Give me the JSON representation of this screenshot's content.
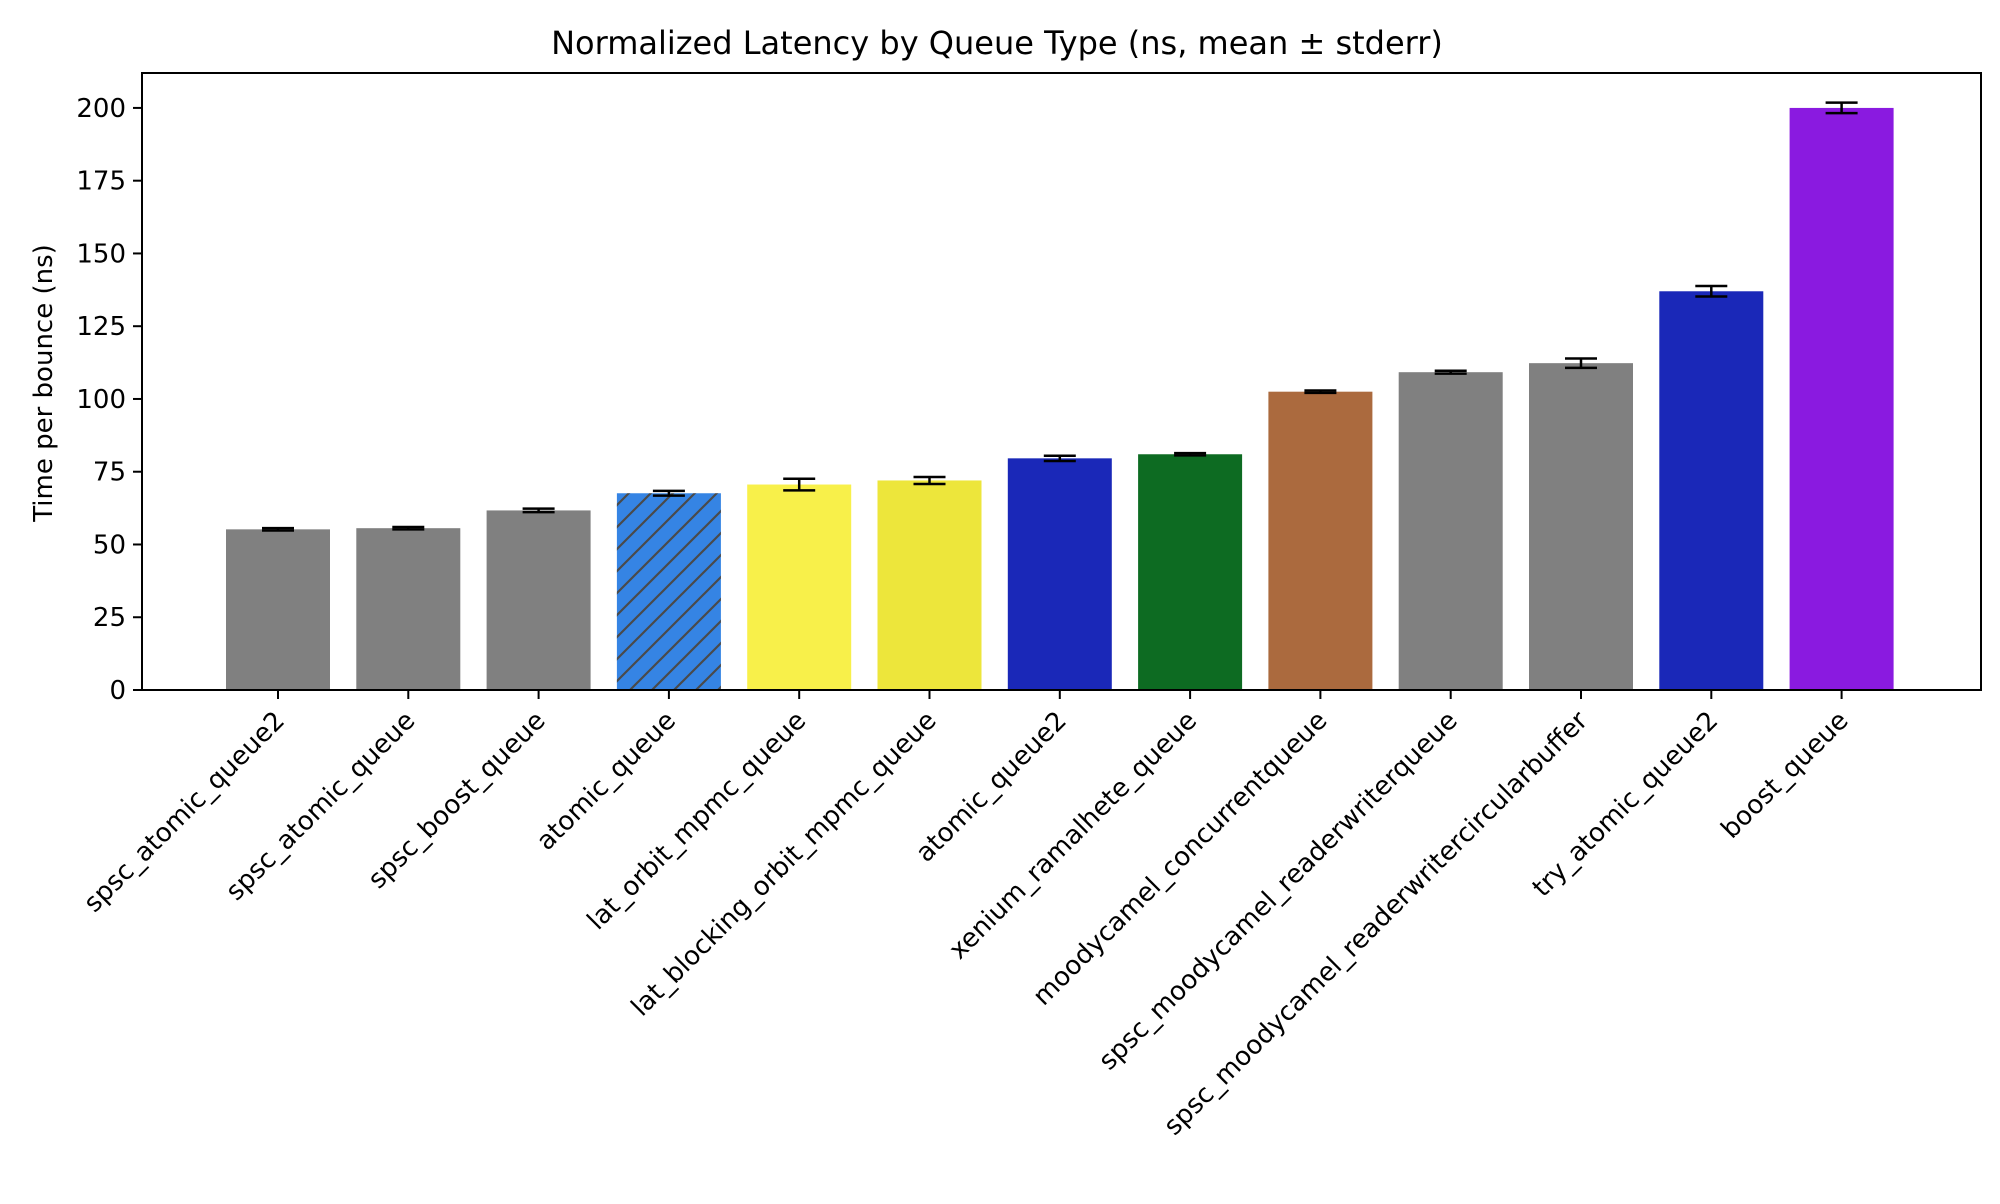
{
  "chart_data": {
    "type": "bar",
    "title": "Normalized Latency by Queue Type (ns, mean ± stderr)",
    "xlabel": "",
    "ylabel": "Time per bounce (ns)",
    "ylim": [
      0,
      212
    ],
    "yticks": [
      0,
      25,
      50,
      75,
      100,
      125,
      150,
      175,
      200
    ],
    "grid": false,
    "legend": "none",
    "categories": [
      "spsc_atomic_queue2",
      "spsc_atomic_queue",
      "spsc_boost_queue",
      "atomic_queue",
      "lat_orbit_mpmc_queue",
      "lat_blocking_orbit_mpmc_queue",
      "atomic_queue2",
      "xenium_ramalhete_queue",
      "moodycamel_concurrentqueue",
      "spsc_moodycamel_readerwriterqueue",
      "spsc_moodycamel_readerwritercircularbuffer",
      "try_atomic_queue2",
      "boost_queue"
    ],
    "values": [
      55.2,
      55.6,
      61.7,
      67.6,
      70.6,
      72.0,
      79.6,
      81.0,
      102.5,
      109.2,
      112.3,
      137.0,
      200.0
    ],
    "errors": [
      0.4,
      0.4,
      0.6,
      0.8,
      2.0,
      1.2,
      0.9,
      0.4,
      0.4,
      0.5,
      1.6,
      1.8,
      1.8
    ],
    "colors": [
      "#808080",
      "#808080",
      "#808080",
      "#3584e4",
      "#f8f04a",
      "#ede63b",
      "#1a28b8",
      "#0d6b22",
      "#ab6a3e",
      "#808080",
      "#808080",
      "#1a28b8",
      "#8a1ae0"
    ],
    "hatched": [
      false,
      false,
      false,
      true,
      false,
      false,
      false,
      false,
      false,
      false,
      false,
      false,
      false
    ]
  }
}
